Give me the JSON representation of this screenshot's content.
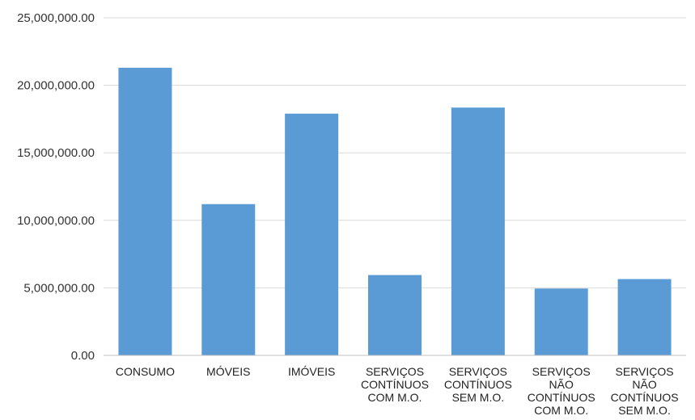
{
  "chart_data": {
    "type": "bar",
    "categories": [
      [
        "CONSUMO"
      ],
      [
        "MÓVEIS"
      ],
      [
        "IMÓVEIS"
      ],
      [
        "SERVIÇOS",
        "CONTÍNUOS",
        "COM M.O."
      ],
      [
        "SERVIÇOS",
        "CONTÍNUOS",
        "SEM M.O."
      ],
      [
        "SERVIÇOS",
        "NÃO",
        "CONTÍNUOS",
        "COM M.O."
      ],
      [
        "SERVIÇOS",
        "NÃO",
        "CONTÍNUOS",
        "SEM M.O."
      ]
    ],
    "values": [
      21300000,
      11200000,
      17900000,
      5950000,
      18350000,
      4950000,
      5650000
    ],
    "title": "",
    "xlabel": "",
    "ylabel": "",
    "ylim": [
      0,
      25000000
    ],
    "yticks": [
      "0.00",
      "5,000,000.00",
      "10,000,000.00",
      "15,000,000.00",
      "20,000,000.00",
      "25,000,000.00"
    ],
    "grid": true,
    "legend": "none",
    "bar_color": "#5b9bd5"
  }
}
